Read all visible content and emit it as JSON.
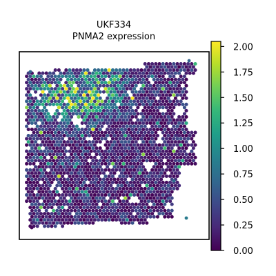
{
  "chart_data": {
    "type": "scatter",
    "title_line1": "UKF334",
    "title_line2": "PNMA2 expression",
    "xlabel": "",
    "ylabel": "",
    "legend": "none",
    "colorbar": {
      "colormap": "viridis",
      "min": 0.0,
      "max": 2.05,
      "ticks": [
        0.0,
        0.25,
        0.5,
        0.75,
        1.0,
        1.25,
        1.5,
        1.75,
        2.0
      ],
      "tick_labels": [
        "0.00",
        "0.25",
        "0.50",
        "0.75",
        "1.00",
        "1.25",
        "1.50",
        "1.75",
        "2.00"
      ]
    },
    "spots": {
      "description_of_distribution": "spatial spot grid; mostly low expression, hotspot of higher expression in upper-left region",
      "expression_range": [
        0.0,
        2.05
      ],
      "hotspot_region": "upper-left",
      "typical_value": 0.3
    },
    "colors": {
      "viridis_stops": [
        "#440154",
        "#482878",
        "#3e4989",
        "#31688e",
        "#26828e",
        "#1f9e89",
        "#35b779",
        "#6ece58",
        "#b5de2b",
        "#fde725"
      ]
    }
  }
}
